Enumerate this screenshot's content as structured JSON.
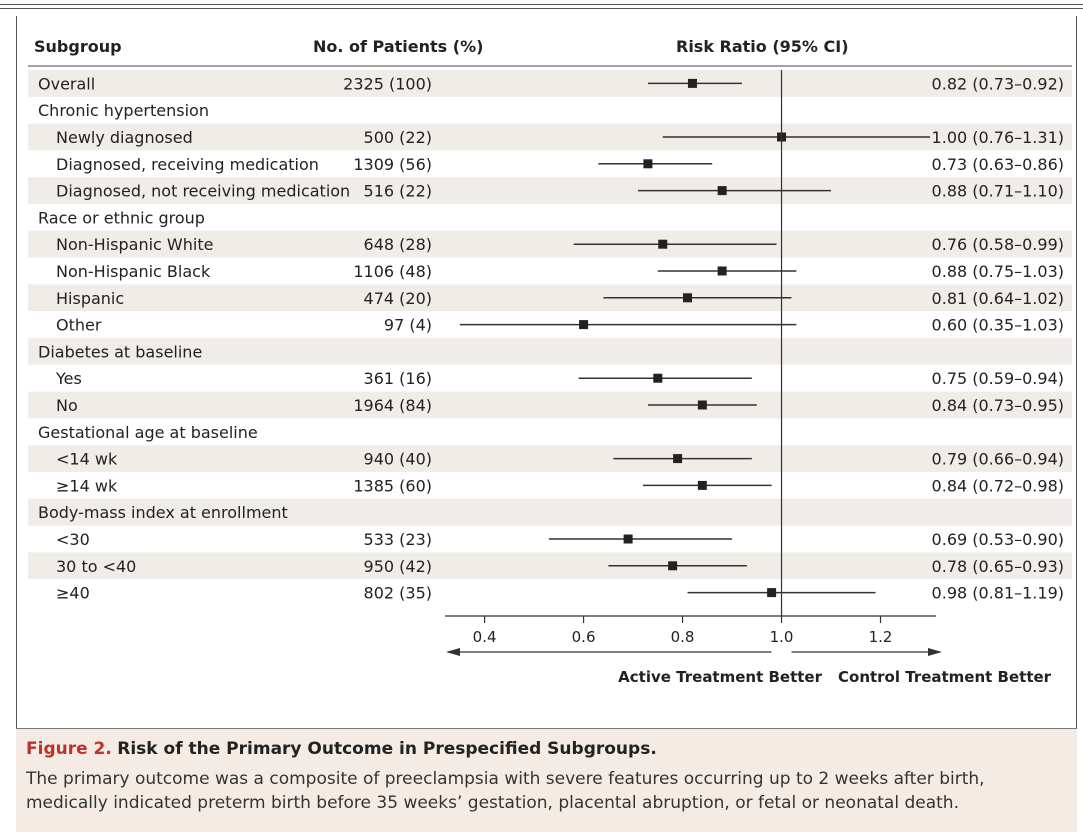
{
  "header": {
    "subgroup": "Subgroup",
    "patients": "No. of Patients (%)",
    "risk_ratio": "Risk Ratio (95% CI)"
  },
  "chart_data": {
    "type": "forest",
    "x_ticks": [
      0.4,
      0.6,
      0.8,
      1.0,
      1.2
    ],
    "x_tick_labels": [
      "0.4",
      "0.6",
      "0.8",
      "1.0",
      "1.2"
    ],
    "xlim": [
      0.32,
      1.3
    ],
    "reference_line": 1.0,
    "arrow_left_label": "Active Treatment Better",
    "arrow_right_label": "Control Treatment Better",
    "rows": [
      {
        "label": "Overall",
        "indent": 0,
        "n": "2325 (100)",
        "rr": 0.82,
        "lo": 0.73,
        "hi": 0.92,
        "ci_text": "0.82 (0.73–0.92)",
        "shade": true
      },
      {
        "label": "Chronic hypertension",
        "indent": 0,
        "shade": false
      },
      {
        "label": "Newly diagnosed",
        "indent": 1,
        "n": "500 (22)",
        "rr": 1.0,
        "lo": 0.76,
        "hi": 1.31,
        "ci_text": "1.00 (0.76–1.31)",
        "shade": true
      },
      {
        "label": "Diagnosed, receiving medication",
        "indent": 1,
        "n": "1309 (56)",
        "rr": 0.73,
        "lo": 0.63,
        "hi": 0.86,
        "ci_text": "0.73 (0.63–0.86)",
        "shade": false
      },
      {
        "label": "Diagnosed, not receiving medication",
        "indent": 1,
        "n": "516 (22)",
        "rr": 0.88,
        "lo": 0.71,
        "hi": 1.1,
        "ci_text": "0.88 (0.71–1.10)",
        "shade": true
      },
      {
        "label": "Race or ethnic group",
        "indent": 0,
        "shade": false
      },
      {
        "label": "Non-Hispanic White",
        "indent": 1,
        "n": "648 (28)",
        "rr": 0.76,
        "lo": 0.58,
        "hi": 0.99,
        "ci_text": "0.76 (0.58–0.99)",
        "shade": true
      },
      {
        "label": "Non-Hispanic Black",
        "indent": 1,
        "n": "1106 (48)",
        "rr": 0.88,
        "lo": 0.75,
        "hi": 1.03,
        "ci_text": "0.88 (0.75–1.03)",
        "shade": false
      },
      {
        "label": "Hispanic",
        "indent": 1,
        "n": "474 (20)",
        "rr": 0.81,
        "lo": 0.64,
        "hi": 1.02,
        "ci_text": "0.81 (0.64–1.02)",
        "shade": true
      },
      {
        "label": "Other",
        "indent": 1,
        "n": "97 (4)",
        "rr": 0.6,
        "lo": 0.35,
        "hi": 1.03,
        "ci_text": "0.60 (0.35–1.03)",
        "shade": false
      },
      {
        "label": "Diabetes at baseline",
        "indent": 0,
        "shade": true
      },
      {
        "label": "Yes",
        "indent": 1,
        "n": "361 (16)",
        "rr": 0.75,
        "lo": 0.59,
        "hi": 0.94,
        "ci_text": "0.75 (0.59–0.94)",
        "shade": false
      },
      {
        "label": "No",
        "indent": 1,
        "n": "1964 (84)",
        "rr": 0.84,
        "lo": 0.73,
        "hi": 0.95,
        "ci_text": "0.84 (0.73–0.95)",
        "shade": true
      },
      {
        "label": "Gestational age at baseline",
        "indent": 0,
        "shade": false
      },
      {
        "label": "<14 wk",
        "indent": 1,
        "n": "940 (40)",
        "rr": 0.79,
        "lo": 0.66,
        "hi": 0.94,
        "ci_text": "0.79 (0.66–0.94)",
        "shade": true
      },
      {
        "label": "≥14 wk",
        "indent": 1,
        "n": "1385 (60)",
        "rr": 0.84,
        "lo": 0.72,
        "hi": 0.98,
        "ci_text": "0.84 (0.72–0.98)",
        "shade": false
      },
      {
        "label": "Body-mass index at enrollment",
        "indent": 0,
        "shade": true
      },
      {
        "label": "<30",
        "indent": 1,
        "n": "533 (23)",
        "rr": 0.69,
        "lo": 0.53,
        "hi": 0.9,
        "ci_text": "0.69 (0.53–0.90)",
        "shade": false
      },
      {
        "label": "30 to <40",
        "indent": 1,
        "n": "950 (42)",
        "rr": 0.78,
        "lo": 0.65,
        "hi": 0.93,
        "ci_text": "0.78 (0.65–0.93)",
        "shade": true
      },
      {
        "label": "≥40",
        "indent": 1,
        "n": "802 (35)",
        "rr": 0.98,
        "lo": 0.81,
        "hi": 1.19,
        "ci_text": "0.98 (0.81–1.19)",
        "shade": false
      }
    ]
  },
  "caption": {
    "label": "Figure 2.",
    "title": "Risk of the Primary Outcome in Prespecified Subgroups.",
    "body": "The primary outcome was a composite of preeclampsia with severe features occurring up to 2 weeks after birth, medically indicated preterm birth before 35 weeks’ gestation, placental abruption, or fetal or neonatal death."
  },
  "colors": {
    "shade": "#f0ede9",
    "ink": "#222222",
    "caption_label": "#c0312b",
    "caption_bg": "#f4ece4"
  }
}
